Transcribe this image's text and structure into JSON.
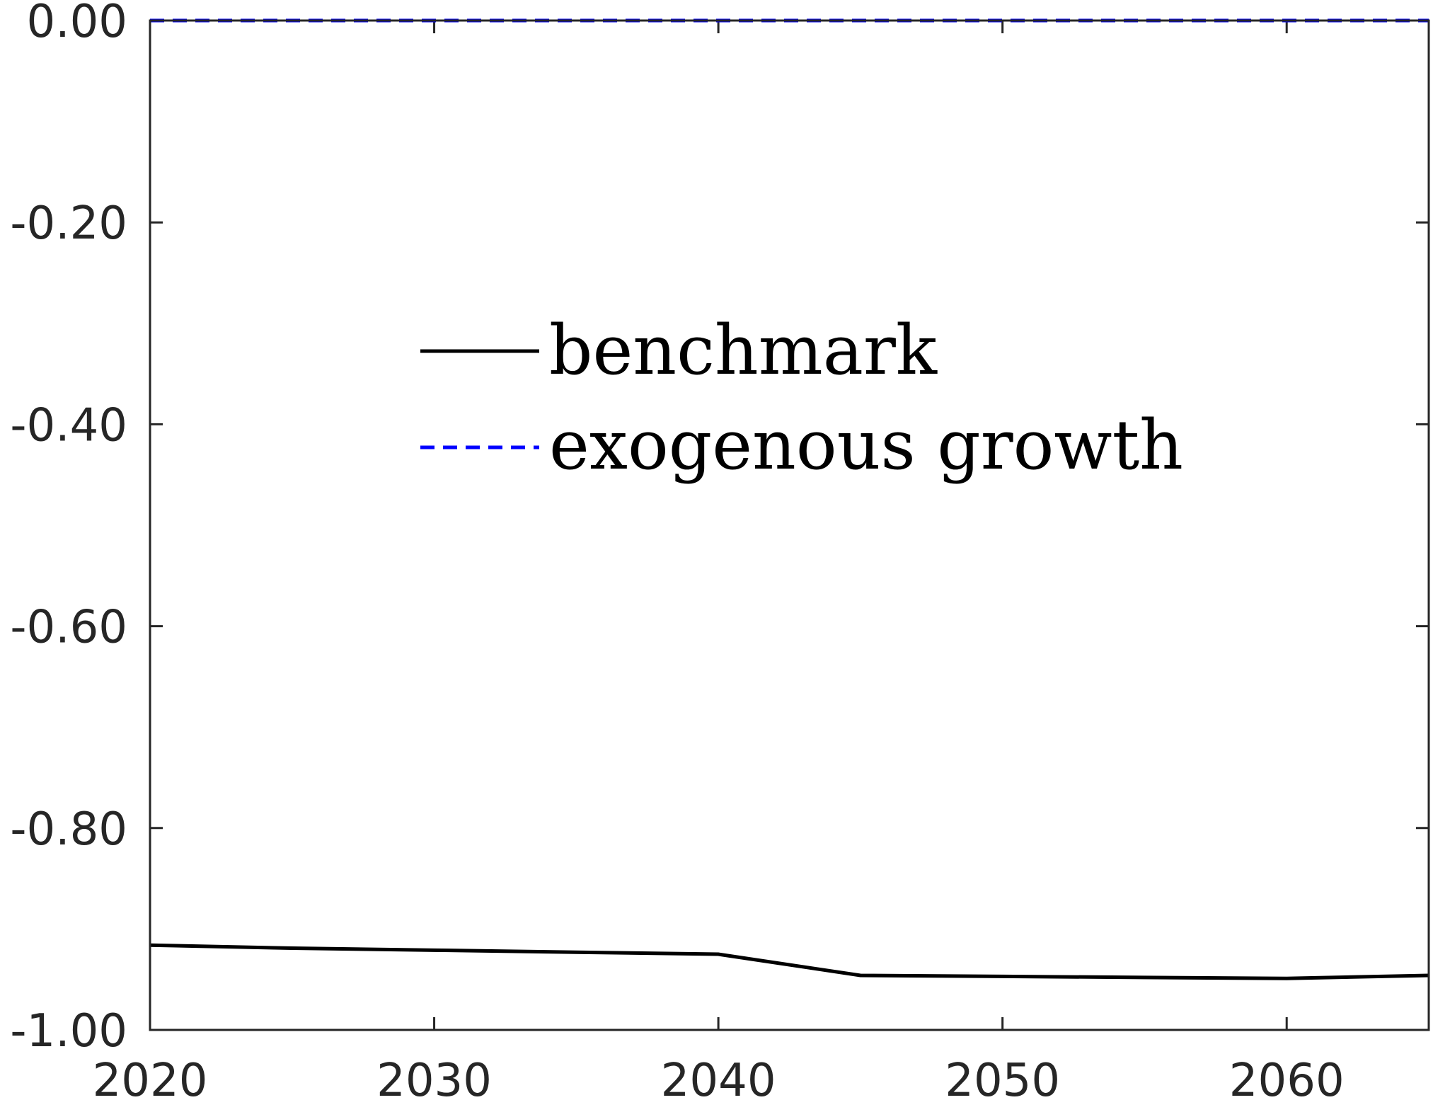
{
  "chart_data": {
    "type": "line",
    "title": "",
    "xlabel": "",
    "ylabel": "",
    "xlim": [
      2020,
      2065
    ],
    "ylim": [
      -1.0,
      0.0
    ],
    "x_ticks": [
      2020,
      2030,
      2040,
      2050,
      2060
    ],
    "x_tick_labels": [
      "2020",
      "2030",
      "2040",
      "2050",
      "2060"
    ],
    "y_ticks": [
      0.0,
      -0.2,
      -0.4,
      -0.6,
      -0.8,
      -1.0
    ],
    "y_tick_labels": [
      "0.00",
      "-0.20",
      "-0.40",
      "-0.60",
      "-0.80",
      "-1.00"
    ],
    "grid": false,
    "legend_position": "center",
    "series": [
      {
        "name": "benchmark",
        "color": "#000000",
        "dash": "solid",
        "x": [
          2020,
          2025,
          2030,
          2035,
          2040,
          2045,
          2050,
          2055,
          2060,
          2065
        ],
        "y": [
          -0.916,
          -0.919,
          -0.921,
          -0.923,
          -0.925,
          -0.946,
          -0.947,
          -0.948,
          -0.949,
          -0.946
        ]
      },
      {
        "name": "exogenous growth",
        "color": "#0000ff",
        "dash": "dashed",
        "x": [
          2020,
          2025,
          2030,
          2035,
          2040,
          2045,
          2050,
          2055,
          2060,
          2065
        ],
        "y": [
          0.0,
          0.0,
          0.0,
          0.0,
          0.0,
          0.0,
          0.0,
          0.0,
          0.0,
          0.0
        ]
      }
    ]
  }
}
